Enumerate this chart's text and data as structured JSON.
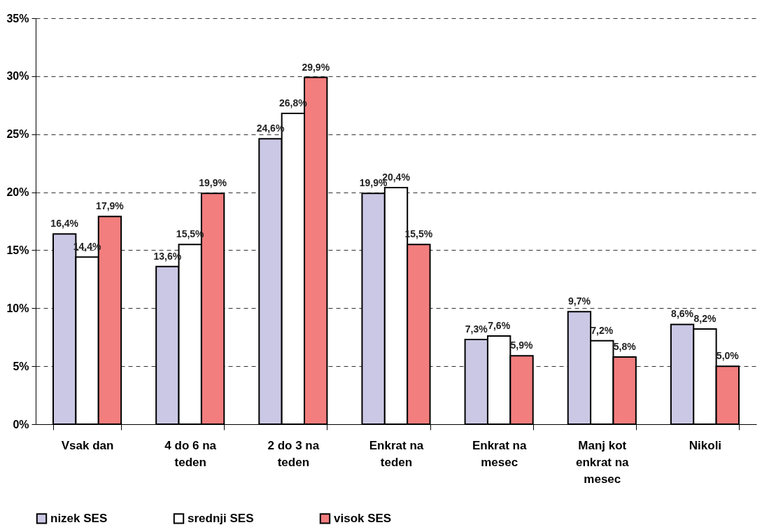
{
  "chart_data": {
    "type": "bar",
    "categories": [
      "Vsak dan",
      "4 do 6 na teden",
      "2 do 3 na teden",
      "Enkrat na teden",
      "Enkrat na mesec",
      "Manj kot enkrat na mesec",
      "Nikoli"
    ],
    "series": [
      {
        "name": "nizek SES",
        "color": "#cac8e4",
        "values": [
          16.4,
          13.6,
          24.6,
          19.9,
          7.3,
          9.7,
          8.6
        ],
        "value_labels": [
          "16,4%",
          "13,6%",
          "24,6%",
          "19,9%",
          "7,3%",
          "9,7%",
          "8,6%"
        ]
      },
      {
        "name": "srednji SES",
        "color": "#ffffff",
        "values": [
          14.4,
          15.5,
          26.8,
          20.4,
          7.6,
          7.2,
          8.2
        ],
        "value_labels": [
          "14,4%",
          "15,5%",
          "26,8%",
          "20,4%",
          "7,6%",
          "7,2%",
          "8,2%"
        ]
      },
      {
        "name": "visok SES",
        "color": "#f27e7e",
        "values": [
          17.9,
          19.9,
          29.9,
          15.5,
          5.9,
          5.8,
          5.0
        ],
        "value_labels": [
          "17,9%",
          "19,9%",
          "29,9%",
          "15,5%",
          "5,9%",
          "5,8%",
          "5,0%"
        ]
      }
    ],
    "ylim": [
      0,
      35
    ],
    "yticks": [
      {
        "value": 0,
        "label": "0%"
      },
      {
        "value": 5,
        "label": "5%"
      },
      {
        "value": 10,
        "label": "10%"
      },
      {
        "value": 15,
        "label": "15%"
      },
      {
        "value": 20,
        "label": "20%"
      },
      {
        "value": 25,
        "label": "25%"
      },
      {
        "value": 30,
        "label": "30%"
      },
      {
        "value": 35,
        "label": "35%"
      }
    ],
    "grid": "y",
    "legend": "bottom"
  }
}
